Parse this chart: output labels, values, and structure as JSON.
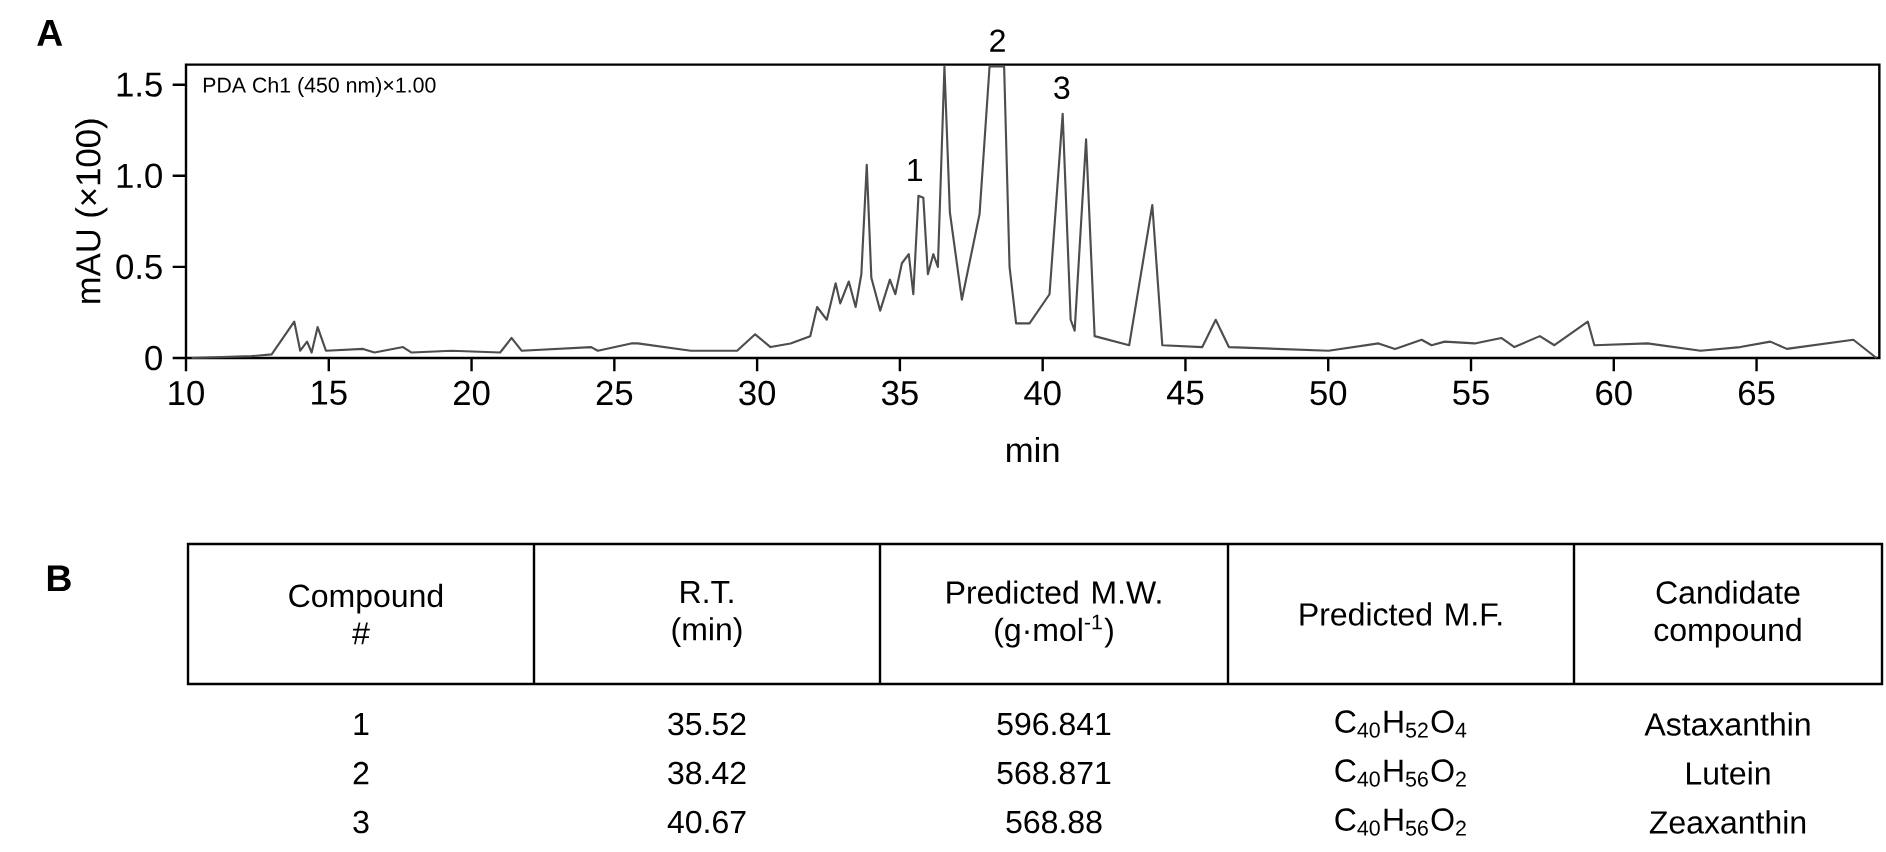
{
  "chart_data": [
    {
      "type": "line",
      "title": "A",
      "xlabel": "min",
      "ylabel": "mAU (×100)",
      "xlim": [
        10,
        69.3
      ],
      "ylim": [
        0,
        1.61
      ],
      "xticks": [
        10,
        15,
        20,
        25,
        30,
        35,
        40,
        45,
        50,
        55,
        60,
        65
      ],
      "yticks": [
        0,
        {
          "value": 0.5,
          "label": "0.5"
        },
        {
          "value": 1,
          "label": "1.0"
        },
        1.5
      ],
      "grid": false,
      "marker": "none",
      "line_style": "solid",
      "series": [
        {
          "color": "#4d4d4d",
          "x": [
            10.2,
            12.3,
            13.0,
            13.79,
            14.0,
            14.24,
            14.4,
            14.61,
            14.9,
            16.2,
            16.6,
            17.6,
            17.9,
            19.3,
            21.0,
            21.4,
            21.75,
            24.19,
            24.42,
            25.59,
            25.82,
            27.68,
            29.3,
            29.93,
            30.47,
            31.17,
            31.86,
            32.1,
            32.44,
            32.75,
            32.91,
            33.21,
            33.45,
            33.65,
            33.84,
            34.0,
            34.31,
            34.65,
            34.84,
            35.07,
            35.31,
            35.47,
            35.65,
            35.82,
            35.98,
            36.17,
            36.33,
            36.56,
            36.75,
            37.17,
            37.79,
            38.14,
            38.65,
            38.84,
            39.07,
            39.54,
            40.24,
            40.7,
            40.98,
            41.12,
            41.52,
            41.82,
            43.03,
            43.84,
            44.19,
            45.59,
            46.06,
            46.52,
            50.01,
            51.76,
            52.34,
            53.27,
            53.62,
            54.08,
            55.13,
            56.06,
            56.52,
            57.41,
            57.92,
            59.09,
            59.32,
            61.18,
            63.04,
            64.43,
            65.48,
            66.06,
            68.39,
            69.2
          ],
          "values": [
            0,
            0.01,
            0.02,
            0.2,
            0.04,
            0.09,
            0.03,
            0.17,
            0.04,
            0.05,
            0.03,
            0.06,
            0.03,
            0.04,
            0.03,
            0.11,
            0.04,
            0.06,
            0.04,
            0.08,
            0.08,
            0.04,
            0.04,
            0.13,
            0.06,
            0.08,
            0.12,
            0.28,
            0.21,
            0.41,
            0.3,
            0.42,
            0.28,
            0.46,
            1.06,
            0.44,
            0.26,
            0.43,
            0.35,
            0.52,
            0.57,
            0.35,
            0.89,
            0.88,
            0.46,
            0.57,
            0.5,
            1.6,
            0.8,
            0.32,
            0.79,
            1.6,
            1.6,
            0.5,
            0.19,
            0.19,
            0.35,
            1.34,
            0.21,
            0.15,
            1.2,
            0.12,
            0.07,
            0.84,
            0.07,
            0.06,
            0.21,
            0.06,
            0.04,
            0.08,
            0.05,
            0.1,
            0.07,
            0.09,
            0.08,
            0.11,
            0.06,
            0.12,
            0.07,
            0.2,
            0.07,
            0.08,
            0.04,
            0.06,
            0.09,
            0.05,
            0.1,
            0
          ]
        }
      ],
      "annotations": [
        "PDA Ch1 (450 nm)×1.00",
        {
          "text": "1",
          "x": 35.52,
          "y": 0.89
        },
        {
          "text": "2",
          "x": 38.42,
          "y": 1.6
        },
        {
          "text": "3",
          "x": 40.67,
          "y": 1.34
        }
      ]
    },
    {
      "type": "other",
      "title": "B",
      "categories": [
        "Compound #",
        "R.T. (min)",
        "Predicted M.W. (g·mol$^{-1}$)",
        "Predicted M.F.",
        "Candidate compound"
      ],
      "cell_labels": [
        [
          "1",
          "35.52",
          "596.841",
          "C$_{40}$H$_{52}$O$_{4}$",
          "Astaxanthin"
        ],
        [
          "2",
          "38.42",
          "568.871",
          "C$_{40}$H$_{56}$O$_{2}$",
          "Lutein"
        ],
        [
          "3",
          "40.67",
          "568.88",
          "C$_{40}$H$_{56}$O$_{2}$",
          "Zeaxanthin"
        ]
      ]
    }
  ]
}
